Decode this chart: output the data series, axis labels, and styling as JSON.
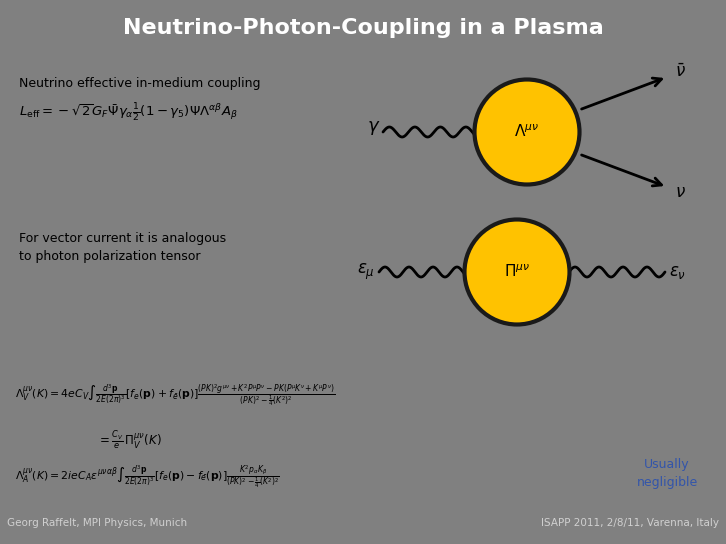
{
  "title": "Neutrino-Photon-Coupling in a Plasma",
  "title_bg": "#808080",
  "title_color": "#ffffff",
  "top_panel_bg": "#c8c8c8",
  "bottom_panel_bg": "#e0e0e0",
  "footer_bg": "#808080",
  "footer_left": "Georg Raffelt, MPI Physics, Munich",
  "footer_right": "ISAPP 2011, 2/8/11, Varenna, Italy",
  "footer_color": "#d0d0d0",
  "blob_color": "#ffc200",
  "blob_outline": "#1a1a1a",
  "text_upper_label": "Neutrino effective in-medium coupling",
  "text_vector_line1": "For vector current it is analogous",
  "text_vector_line2": "to photon polarization tensor",
  "usually_negligible_1": "Usually",
  "usually_negligible_2": "negligible",
  "usually_color": "#3355aa"
}
